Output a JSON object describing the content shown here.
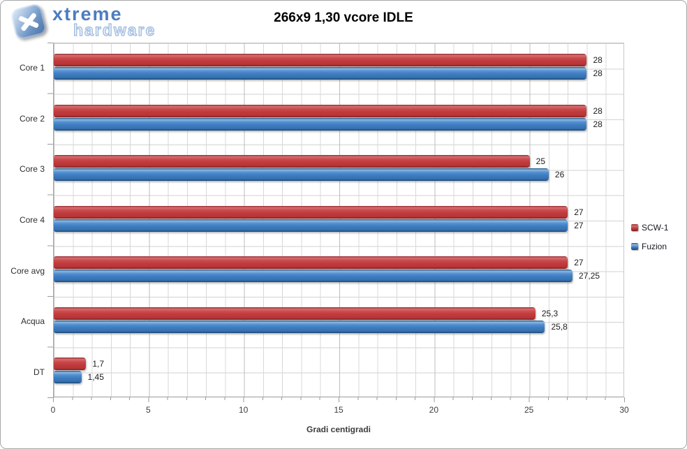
{
  "logo": {
    "brand_top": "xtreme",
    "brand_bottom": "hardware",
    "badge_color": "#6b92c2"
  },
  "chart_data": {
    "type": "bar",
    "orientation": "horizontal",
    "title": "266x9 1,30 vcore IDLE",
    "xlabel": "Gradi centigradi",
    "xlim": [
      0,
      30
    ],
    "x_ticks": [
      0,
      5,
      10,
      15,
      20,
      25,
      30
    ],
    "grid": "vertical minor every 1 unit, vertical major every 5 units, horizontal every half category",
    "legend_position": "right",
    "categories": [
      "Core 1",
      "Core 2",
      "Core 3",
      "Core 4",
      "Core avg",
      "Acqua",
      "DT"
    ],
    "series": [
      {
        "name": "SCW-1",
        "color": "#c23b3d",
        "values": [
          28,
          28,
          25,
          27,
          27,
          25.3,
          1.7
        ],
        "value_labels": [
          "28",
          "28",
          "25",
          "27",
          "27",
          "25,3",
          "1,7"
        ]
      },
      {
        "name": "Fuzion",
        "color": "#3e7dc2",
        "values": [
          28,
          28,
          26,
          27,
          27.25,
          25.8,
          1.45
        ],
        "value_labels": [
          "28",
          "28",
          "26",
          "27",
          "27,25",
          "25,8",
          "1,45"
        ]
      }
    ]
  }
}
